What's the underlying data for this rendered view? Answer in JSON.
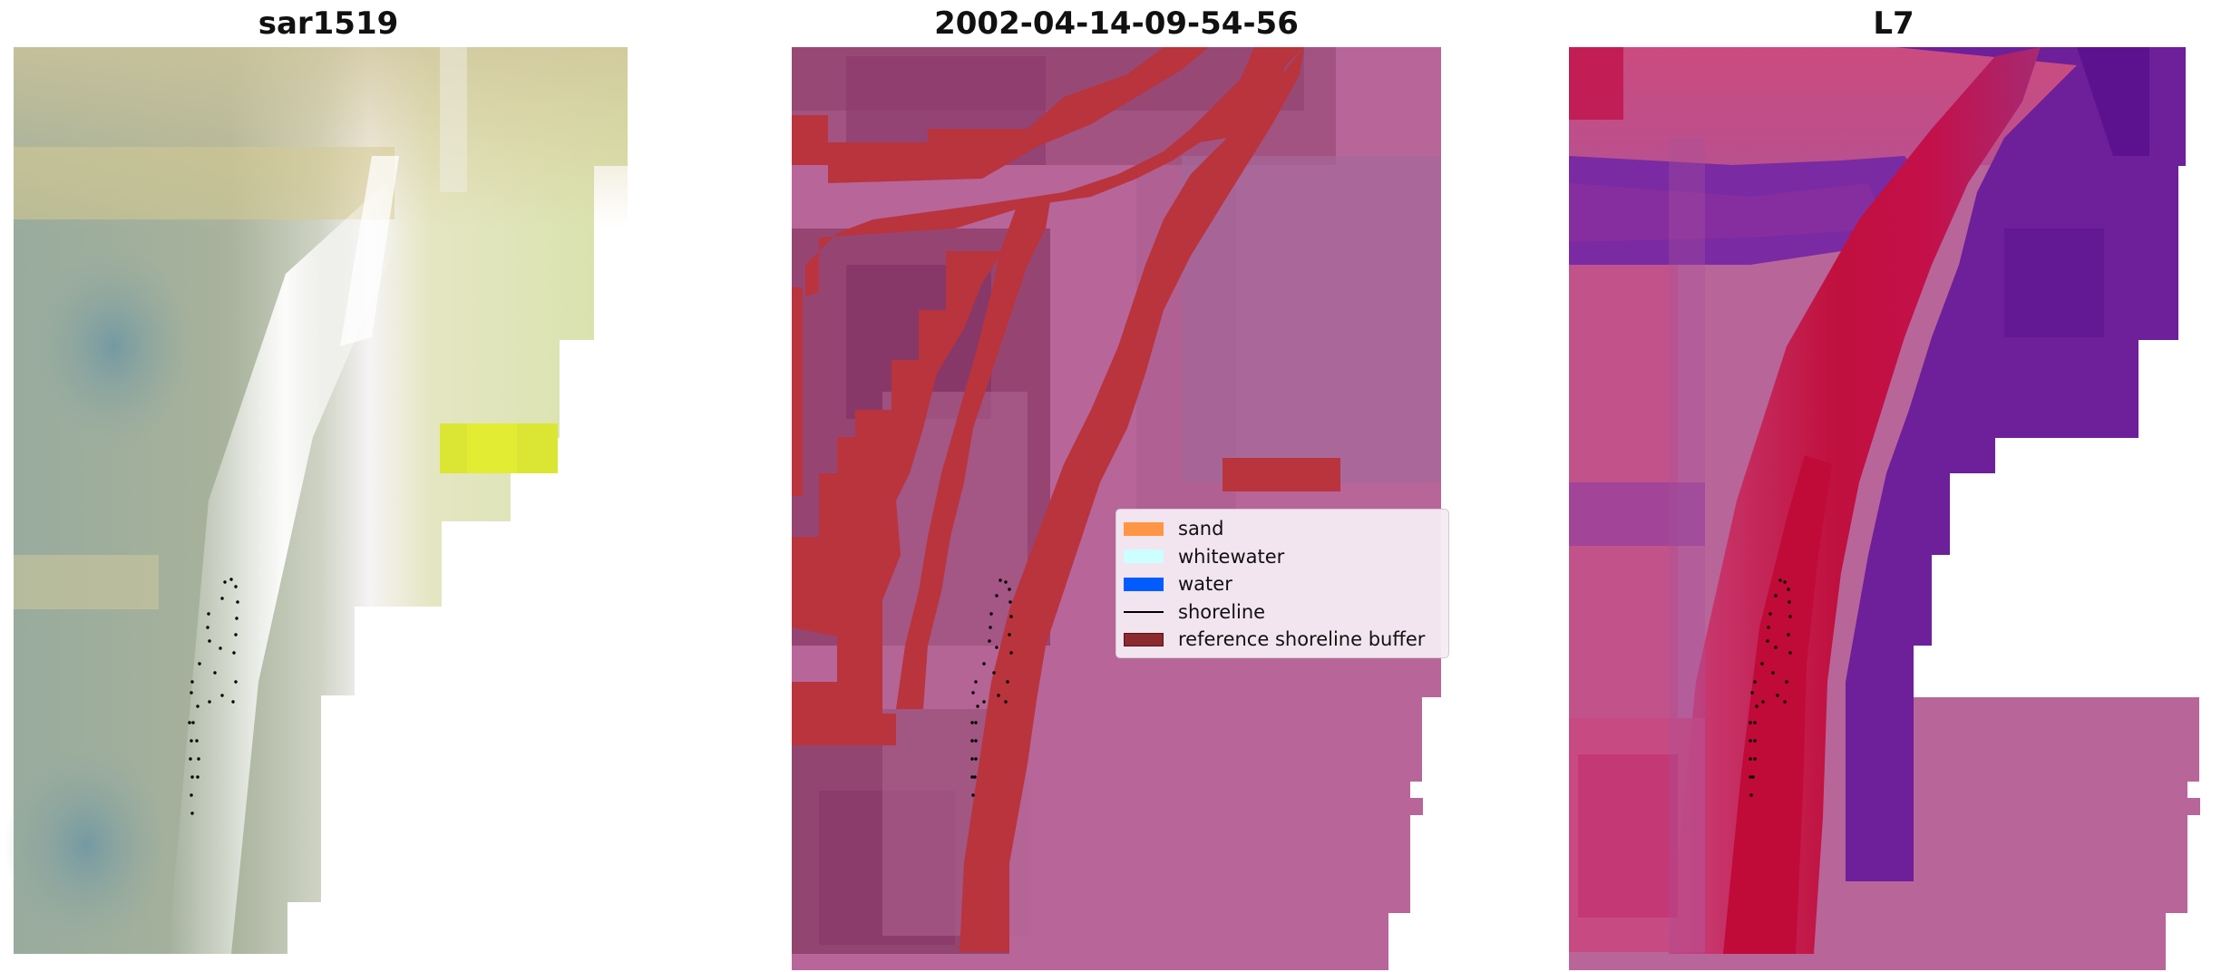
{
  "panels": [
    {
      "title": "sar1519"
    },
    {
      "title": "2002-04-14-09-54-56"
    },
    {
      "title": "L7"
    }
  ],
  "legend": {
    "items": [
      {
        "label": "sand",
        "color": "#ff9645"
      },
      {
        "label": "whitewater",
        "color": "#ccffff"
      },
      {
        "label": "water",
        "color": "#005cff"
      },
      {
        "label": "shoreline",
        "color": "#000000"
      },
      {
        "label": "reference shoreline buffer",
        "color": "#8b2a2f"
      }
    ]
  },
  "colors": {
    "classified_background": "#b8659a",
    "buffer_red": "#b9343d",
    "nir_red": "#c40e3e",
    "nir_purple": "#6f1f9a"
  }
}
